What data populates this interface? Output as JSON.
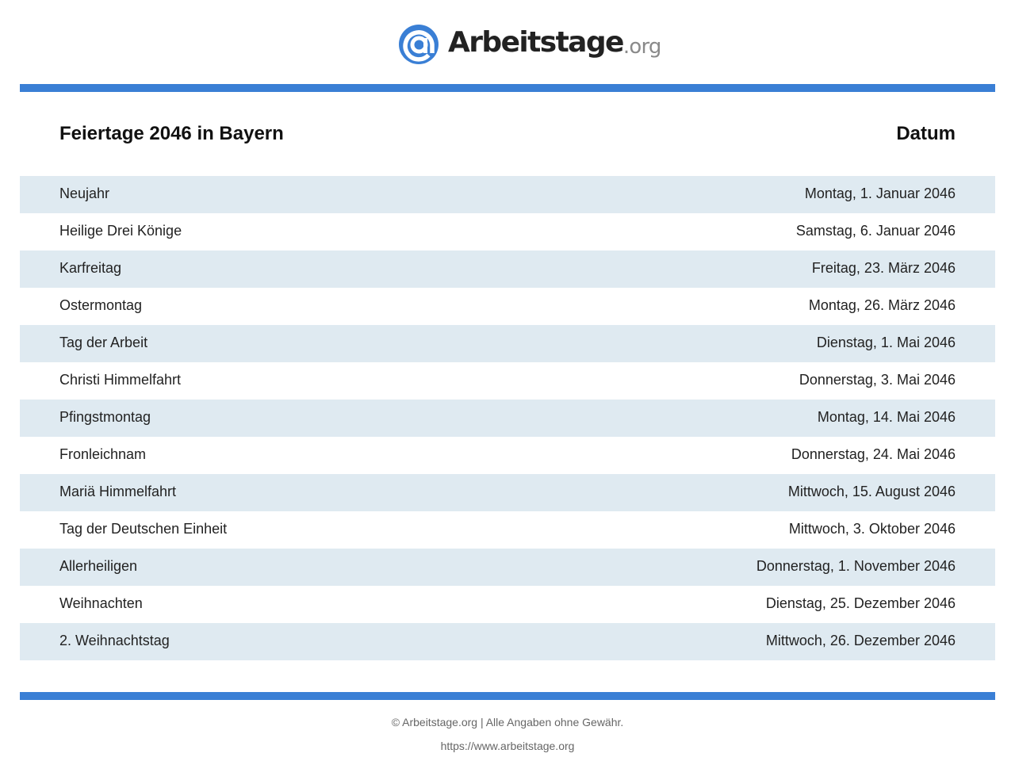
{
  "logo": {
    "name": "Arbeitstage",
    "tld": ".org",
    "brand_color": "#3a7fd5",
    "icon": "at-sign-icon"
  },
  "table": {
    "title": "Feiertage 2046 in Bayern",
    "date_header": "Datum",
    "stripe_color": "#dfeaf1",
    "rows": [
      {
        "name": "Neujahr",
        "date": "Montag, 1. Januar 2046"
      },
      {
        "name": "Heilige Drei Könige",
        "date": "Samstag, 6. Januar 2046"
      },
      {
        "name": "Karfreitag",
        "date": "Freitag, 23. März 2046"
      },
      {
        "name": "Ostermontag",
        "date": "Montag, 26. März 2046"
      },
      {
        "name": "Tag der Arbeit",
        "date": "Dienstag, 1. Mai 2046"
      },
      {
        "name": "Christi Himmelfahrt",
        "date": "Donnerstag, 3. Mai 2046"
      },
      {
        "name": "Pfingstmontag",
        "date": "Montag, 14. Mai 2046"
      },
      {
        "name": "Fronleichnam",
        "date": "Donnerstag, 24. Mai 2046"
      },
      {
        "name": "Mariä Himmelfahrt",
        "date": "Mittwoch, 15. August 2046"
      },
      {
        "name": "Tag der Deutschen Einheit",
        "date": "Mittwoch, 3. Oktober 2046"
      },
      {
        "name": "Allerheiligen",
        "date": "Donnerstag, 1. November 2046"
      },
      {
        "name": "Weihnachten",
        "date": "Dienstag, 25. Dezember 2046"
      },
      {
        "name": "2. Weihnachtstag",
        "date": "Mittwoch, 26. Dezember 2046"
      }
    ]
  },
  "footer": {
    "copyright": "© Arbeitstage.org | Alle Angaben ohne Gewähr.",
    "url": "https://www.arbeitstage.org"
  }
}
